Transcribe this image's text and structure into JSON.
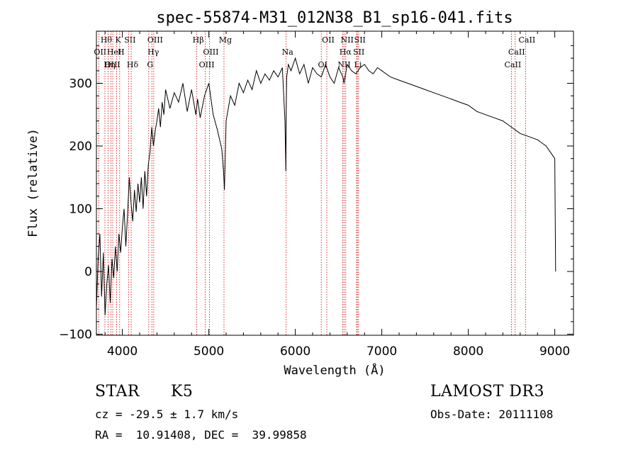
{
  "chart_data": {
    "type": "line",
    "title": "spec-55874-M31_012N38_B1_sp16-041.fits",
    "xlabel": "Wavelength (Å)",
    "ylabel": "Flux (relative)",
    "xlim": [
      3700,
      9100
    ],
    "ylim": [
      -100,
      380
    ],
    "xticks": [
      4000,
      5000,
      6000,
      7000,
      8000,
      9000
    ],
    "yticks": [
      -100,
      0,
      100,
      200,
      300
    ],
    "series": [
      {
        "name": "flux",
        "x": [
          3700,
          3720,
          3740,
          3760,
          3780,
          3800,
          3820,
          3840,
          3860,
          3880,
          3900,
          3920,
          3940,
          3960,
          3980,
          4000,
          4020,
          4040,
          4060,
          4080,
          4100,
          4120,
          4140,
          4160,
          4180,
          4200,
          4220,
          4240,
          4260,
          4280,
          4300,
          4320,
          4340,
          4360,
          4380,
          4400,
          4420,
          4440,
          4460,
          4480,
          4500,
          4550,
          4600,
          4650,
          4700,
          4750,
          4800,
          4850,
          4870,
          4900,
          4950,
          5000,
          5050,
          5100,
          5150,
          5170,
          5180,
          5200,
          5250,
          5300,
          5350,
          5400,
          5450,
          5500,
          5550,
          5600,
          5650,
          5700,
          5750,
          5800,
          5850,
          5880,
          5890,
          5895,
          5900,
          5920,
          5950,
          6000,
          6050,
          6100,
          6150,
          6200,
          6250,
          6300,
          6350,
          6400,
          6450,
          6500,
          6550,
          6563,
          6600,
          6650,
          6700,
          6750,
          6800,
          6850,
          6900,
          6950,
          7000,
          7100,
          7200,
          7300,
          7400,
          7500,
          7600,
          7700,
          7800,
          7900,
          8000,
          8100,
          8200,
          8300,
          8400,
          8500,
          8600,
          8700,
          8800,
          8900,
          8950,
          9000,
          9010
        ],
        "values": [
          -60,
          20,
          60,
          -40,
          30,
          -70,
          -20,
          10,
          -50,
          20,
          -10,
          40,
          0,
          60,
          30,
          70,
          100,
          40,
          90,
          150,
          110,
          80,
          130,
          95,
          140,
          110,
          150,
          100,
          160,
          120,
          170,
          190,
          230,
          200,
          225,
          240,
          260,
          230,
          270,
          250,
          290,
          260,
          285,
          270,
          300,
          255,
          290,
          250,
          275,
          245,
          280,
          300,
          250,
          225,
          195,
          160,
          130,
          240,
          280,
          265,
          300,
          285,
          305,
          290,
          320,
          300,
          315,
          305,
          320,
          310,
          325,
          240,
          160,
          260,
          310,
          330,
          320,
          340,
          315,
          330,
          300,
          325,
          315,
          310,
          330,
          310,
          300,
          325,
          310,
          300,
          330,
          320,
          315,
          325,
          330,
          320,
          315,
          325,
          320,
          310,
          305,
          300,
          295,
          290,
          285,
          280,
          275,
          270,
          265,
          255,
          250,
          245,
          240,
          230,
          220,
          215,
          210,
          200,
          190,
          180,
          0
        ]
      }
    ],
    "spectral_lines": [
      {
        "label": "Hθ",
        "x": 3798
      },
      {
        "label": "OII",
        "x": 3727
      },
      {
        "label": "OIII",
        "x": 3869
      },
      {
        "label": "K",
        "x": 3934
      },
      {
        "label": "HeI",
        "x": 3889
      },
      {
        "label": "Hη",
        "x": 3835
      },
      {
        "label": "SII",
        "x": 4072
      },
      {
        "label": "H",
        "x": 3969
      },
      {
        "label": "Hδ",
        "x": 4102
      },
      {
        "label": "OIII",
        "x": 4363
      },
      {
        "label": "Hγ",
        "x": 4341
      },
      {
        "label": "G",
        "x": 4305
      },
      {
        "label": "Hβ",
        "x": 4861
      },
      {
        "label": "OIII",
        "x": 5007
      },
      {
        "label": "OIII",
        "x": 4959
      },
      {
        "label": "Mg",
        "x": 5175
      },
      {
        "label": "Na",
        "x": 5894
      },
      {
        "label": "OI",
        "x": 6300
      },
      {
        "label": "OII",
        "x": 6364
      },
      {
        "label": "Hα",
        "x": 6563
      },
      {
        "label": "NII",
        "x": 6548
      },
      {
        "label": "NII",
        "x": 6583
      },
      {
        "label": "SII",
        "x": 6717
      },
      {
        "label": "Li",
        "x": 6708
      },
      {
        "label": "SII",
        "x": 6731
      },
      {
        "label": "CaII",
        "x": 8542
      },
      {
        "label": "CaII",
        "x": 8498
      },
      {
        "label": "CaII",
        "x": 8662
      }
    ]
  },
  "info": {
    "class": "STAR",
    "subclass": "K5",
    "survey": "LAMOST DR3",
    "redshift": "cz = -29.5 ± 1.7 km/s",
    "obs_date": "Obs-Date: 20111108",
    "coords": "RA =  10.91408, DEC =  39.99858"
  },
  "colors": {
    "line_marker": "#cc0000",
    "spectrum": "#000000"
  }
}
